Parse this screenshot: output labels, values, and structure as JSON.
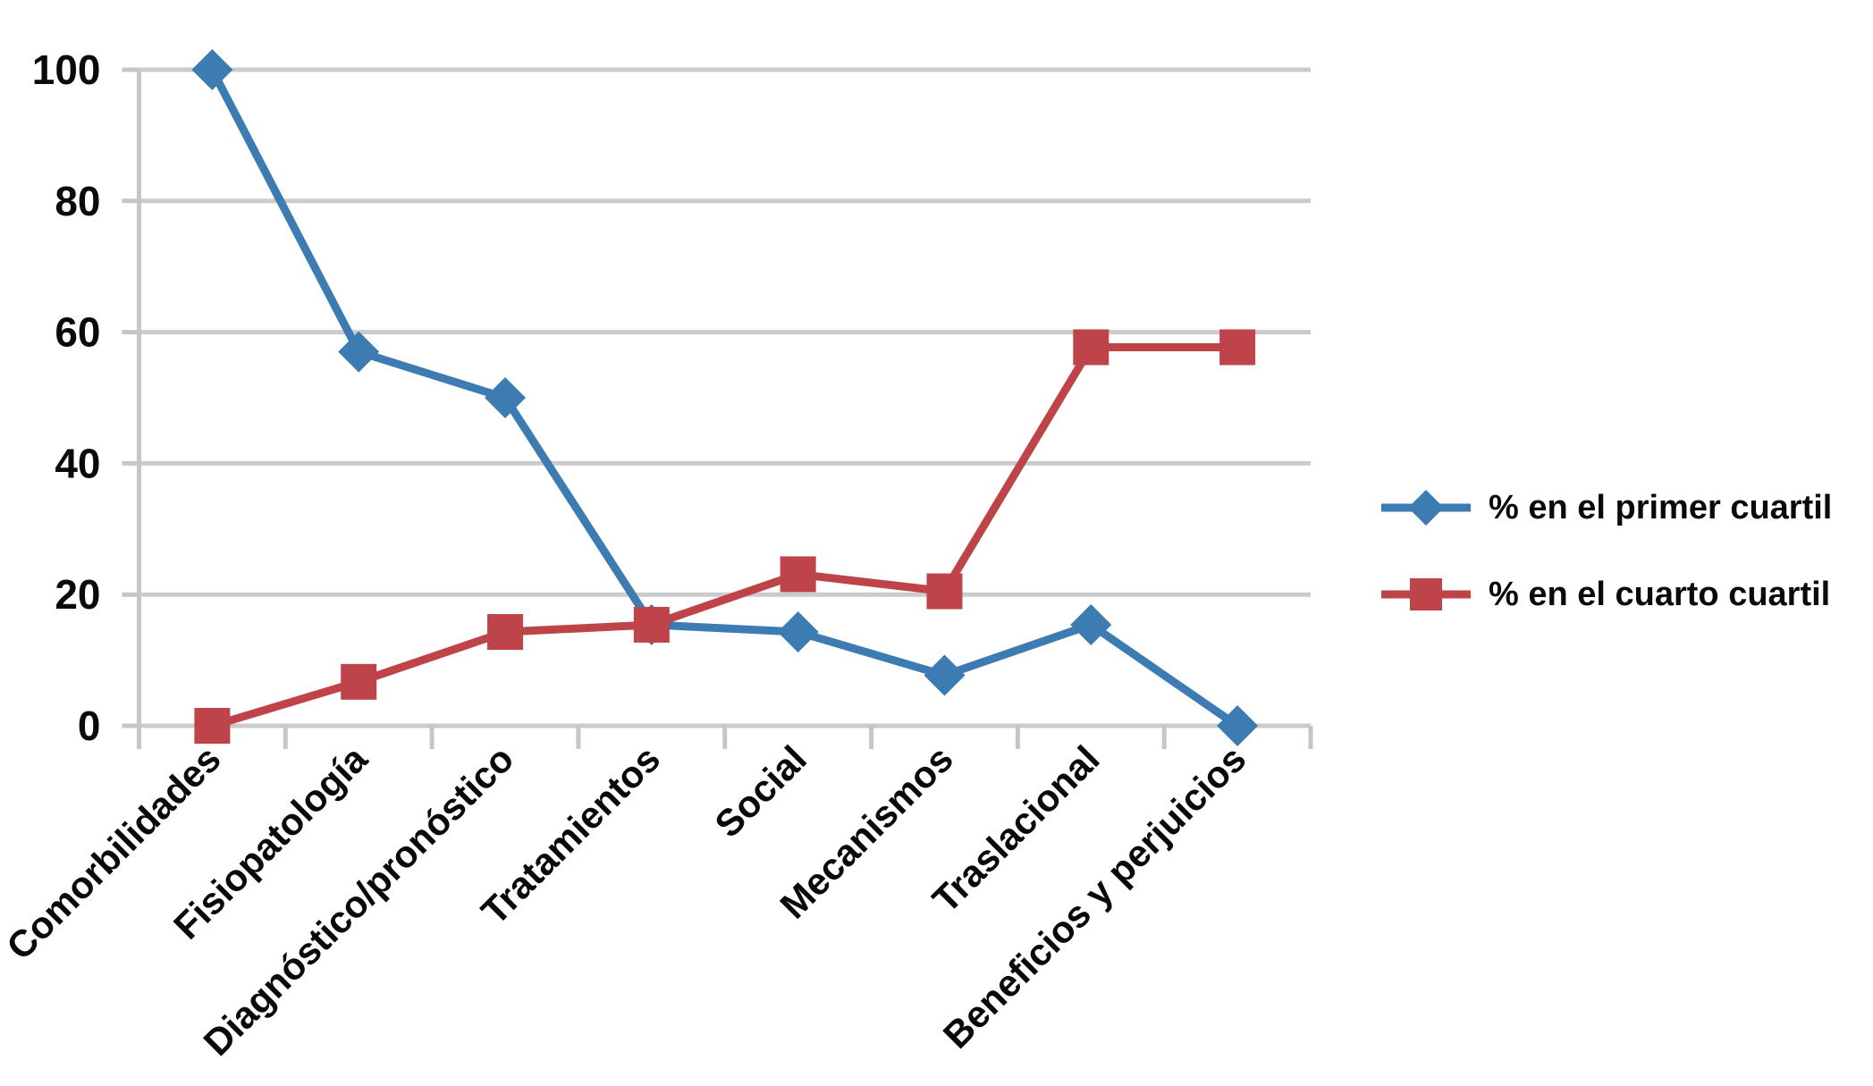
{
  "chart_data": {
    "type": "line",
    "title": "",
    "categories": [
      "Comorbilidades",
      "Fisiopatología",
      "Diagnóstico/pronóstico",
      "Tratamientos",
      "Social",
      "Mecanismos",
      "Traslacional",
      "Beneficios y perjuicios"
    ],
    "series": [
      {
        "name": "% en el primer cuartil",
        "marker": "diamond",
        "color": "#3C7CB2",
        "values": [
          100,
          57,
          50,
          15.4,
          14.3,
          7.7,
          15.4,
          0
        ]
      },
      {
        "name": "% en el cuarto cuartil",
        "marker": "square",
        "color": "#BE4449",
        "values": [
          0,
          6.7,
          14.3,
          15.4,
          23.1,
          20.5,
          57.7,
          57.7
        ]
      }
    ],
    "xlabel": "",
    "ylabel": "",
    "ylim": [
      0,
      100
    ],
    "yticks": [
      0,
      20,
      40,
      60,
      80,
      100
    ],
    "grid": "horizontal",
    "grid_color": "#CBCBCB",
    "axis_color": "#C6C6C6",
    "text_color": "#0A0A0A",
    "legend_position": "right-middle"
  }
}
